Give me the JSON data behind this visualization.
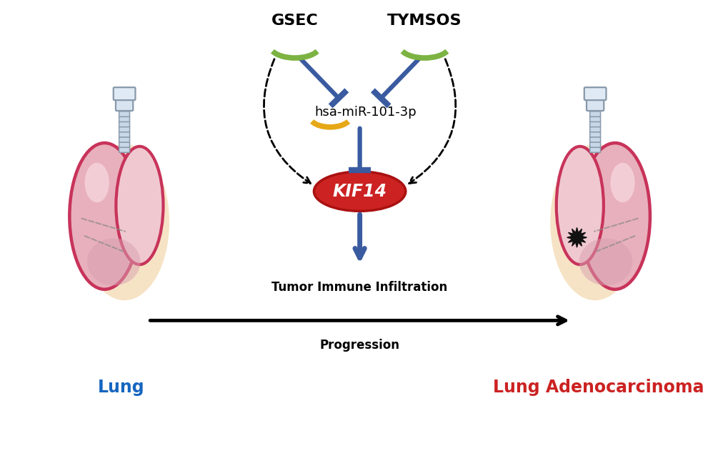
{
  "bg_color": "#ffffff",
  "gsec_label": "GSEC",
  "tymsos_label": "TYMSOS",
  "mir_label": "hsa-miR-101-3p",
  "kif14_label": "KIF14",
  "lung_label": "Lung",
  "luad_label": "Lung Adenocarcinoma",
  "tumor_immune_label": "Tumor Immune Infiltration",
  "progression_label": "Progression",
  "green_color": "#7CB342",
  "blue_color": "#3A5BA0",
  "red_color": "#CC2222",
  "yellow_color": "#E6A817",
  "black_color": "#000000",
  "lung_label_color": "#1565C0",
  "luad_label_color": "#CC2222",
  "kif14_fill": "#CC2222",
  "kif14_text_color": "#ffffff",
  "pink_outer": "#C8335A",
  "pink_fill": "#E8B0BC",
  "pink_light": "#F0C8D0",
  "cream": "#F5DFBB"
}
